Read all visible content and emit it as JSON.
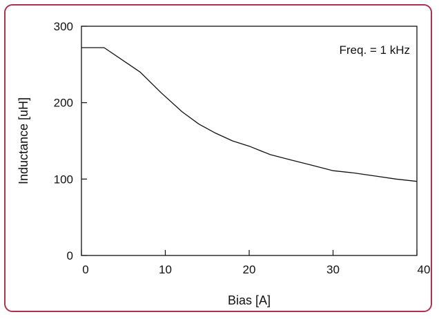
{
  "chart_data": {
    "type": "line",
    "xlabel": "Bias  [A]",
    "ylabel": "Inductance  [uH]",
    "xlim": [
      0,
      40
    ],
    "ylim": [
      0,
      300
    ],
    "x_ticks": [
      0,
      10,
      20,
      30,
      40
    ],
    "y_ticks": [
      0,
      100,
      200,
      300
    ],
    "annotation": "Freq. = 1 kHz",
    "legend": "none",
    "grid": false,
    "series": [
      {
        "x": [
          0,
          2.7,
          7,
          9.5,
          12,
          14,
          16,
          18,
          20,
          22.5,
          25,
          27.5,
          30,
          32.5,
          35,
          37.5,
          40
        ],
        "y": [
          272,
          272,
          240,
          213,
          188,
          172,
          160,
          150,
          143,
          132,
          125,
          118,
          111,
          108,
          104,
          100,
          97
        ]
      }
    ],
    "colors": {
      "line": "#111111",
      "border": "#a8324f"
    }
  }
}
